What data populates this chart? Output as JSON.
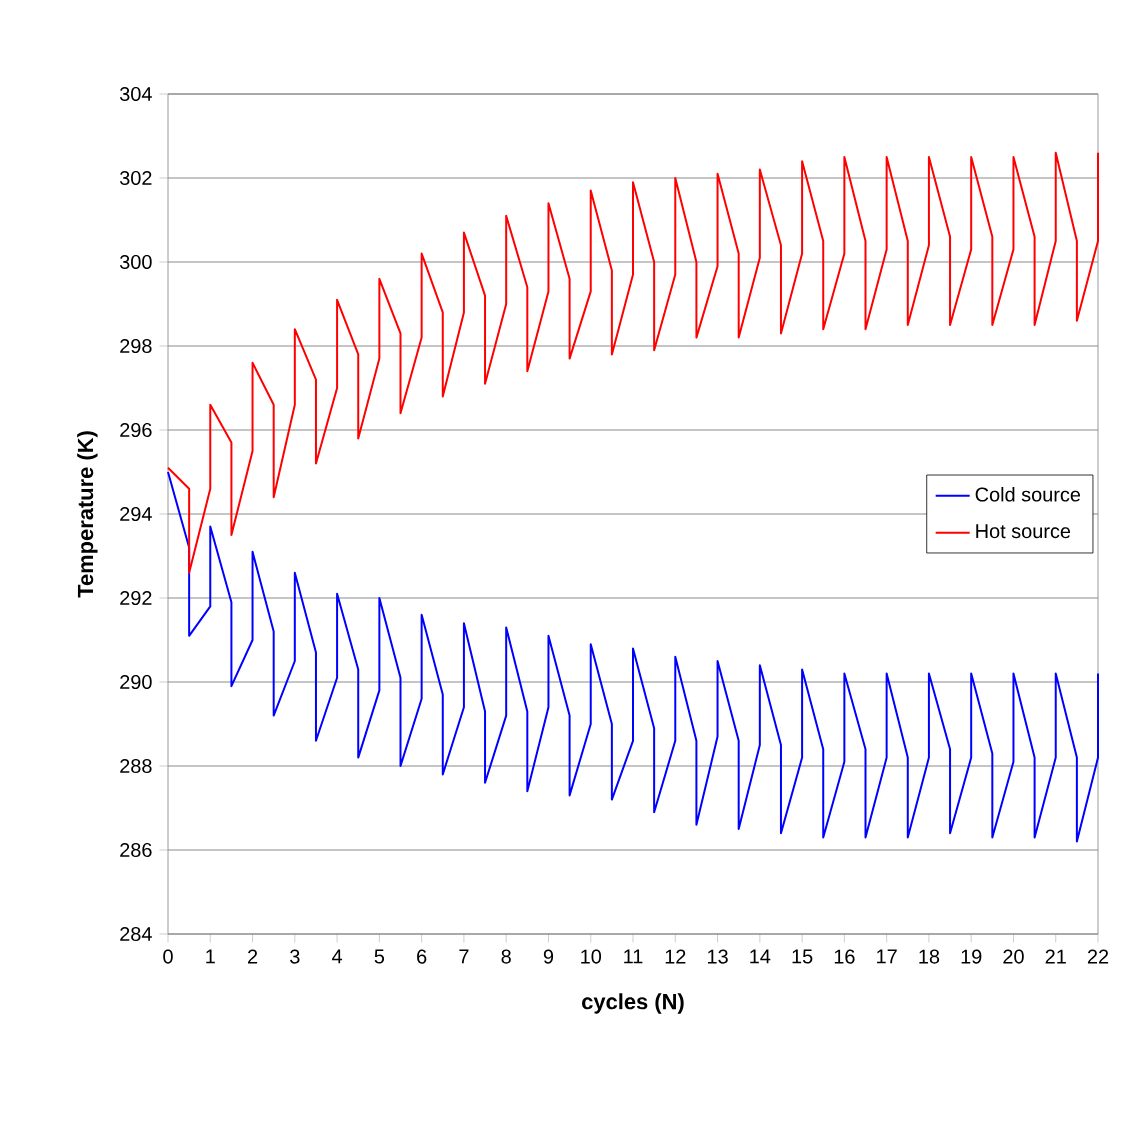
{
  "chart_data": {
    "type": "line",
    "xlabel": "cycles (N)",
    "ylabel": "Temperature (K)",
    "xlim": [
      0,
      22
    ],
    "xticks": [
      0,
      1,
      2,
      3,
      4,
      5,
      6,
      7,
      8,
      9,
      10,
      11,
      12,
      13,
      14,
      15,
      16,
      17,
      18,
      19,
      20,
      21,
      22
    ],
    "ylim": [
      284,
      304
    ],
    "yticks": [
      284,
      286,
      288,
      290,
      292,
      294,
      296,
      298,
      300,
      302,
      304
    ],
    "grid": "y",
    "legend": "right",
    "marker": "none",
    "line_style": "solid",
    "series": [
      {
        "name": "Cold source",
        "color": "#0000ff",
        "x": [
          0,
          0.5,
          0.5,
          1,
          1,
          1.5,
          1.5,
          2,
          2,
          2.5,
          2.5,
          3,
          3,
          3.5,
          3.5,
          4,
          4,
          4.5,
          4.5,
          5,
          5,
          5.5,
          5.5,
          6,
          6,
          6.5,
          6.5,
          7,
          7,
          7.5,
          7.5,
          8,
          8,
          8.5,
          8.5,
          9,
          9,
          9.5,
          9.5,
          10,
          10,
          10.5,
          10.5,
          11,
          11,
          11.5,
          11.5,
          12,
          12,
          12.5,
          12.5,
          13,
          13,
          13.5,
          13.5,
          14,
          14,
          14.5,
          14.5,
          15,
          15,
          15.5,
          15.5,
          16,
          16,
          16.5,
          16.5,
          17,
          17,
          17.5,
          17.5,
          18,
          18,
          18.5,
          18.5,
          19,
          19,
          19.5,
          19.5,
          20,
          20,
          20.5,
          20.5,
          21,
          21,
          21.5,
          21.5,
          22,
          22
        ],
        "values": [
          295.0,
          293.2,
          291.1,
          291.8,
          293.7,
          291.9,
          289.9,
          291.0,
          293.1,
          291.2,
          289.2,
          290.5,
          292.6,
          290.7,
          288.6,
          290.1,
          292.1,
          290.3,
          288.2,
          289.8,
          292.0,
          290.1,
          288.0,
          289.6,
          291.6,
          289.7,
          287.8,
          289.4,
          291.4,
          289.3,
          287.6,
          289.2,
          291.3,
          289.3,
          287.4,
          289.4,
          291.1,
          289.2,
          287.3,
          289.0,
          290.9,
          289.0,
          287.2,
          288.6,
          290.8,
          288.9,
          286.9,
          288.6,
          290.6,
          288.6,
          286.6,
          288.7,
          290.5,
          288.6,
          286.5,
          288.5,
          290.4,
          288.5,
          286.4,
          288.2,
          290.3,
          288.4,
          286.3,
          288.1,
          290.2,
          288.4,
          286.3,
          288.2,
          290.2,
          288.2,
          286.3,
          288.2,
          290.2,
          288.4,
          286.4,
          288.2,
          290.2,
          288.3,
          286.3,
          288.1,
          290.2,
          288.2,
          286.3,
          288.2,
          290.2,
          288.2,
          286.2,
          288.2,
          290.2
        ]
      },
      {
        "name": "Hot source",
        "color": "#ff0000",
        "x": [
          0,
          0.5,
          0.5,
          1,
          1,
          1.5,
          1.5,
          2,
          2,
          2.5,
          2.5,
          3,
          3,
          3.5,
          3.5,
          4,
          4,
          4.5,
          4.5,
          5,
          5,
          5.5,
          5.5,
          6,
          6,
          6.5,
          6.5,
          7,
          7,
          7.5,
          7.5,
          8,
          8,
          8.5,
          8.5,
          9,
          9,
          9.5,
          9.5,
          10,
          10,
          10.5,
          10.5,
          11,
          11,
          11.5,
          11.5,
          12,
          12,
          12.5,
          12.5,
          13,
          13,
          13.5,
          13.5,
          14,
          14,
          14.5,
          14.5,
          15,
          15,
          15.5,
          15.5,
          16,
          16,
          16.5,
          16.5,
          17,
          17,
          17.5,
          17.5,
          18,
          18,
          18.5,
          18.5,
          19,
          19,
          19.5,
          19.5,
          20,
          20,
          20.5,
          20.5,
          21,
          21,
          21.5,
          21.5,
          22,
          22
        ],
        "values": [
          295.1,
          294.6,
          292.6,
          294.6,
          296.6,
          295.7,
          293.5,
          295.5,
          297.6,
          296.6,
          294.4,
          296.6,
          298.4,
          297.2,
          295.2,
          297.0,
          299.1,
          297.8,
          295.8,
          297.7,
          299.6,
          298.3,
          296.4,
          298.2,
          300.2,
          298.8,
          296.8,
          298.8,
          300.7,
          299.2,
          297.1,
          299.0,
          301.1,
          299.4,
          297.4,
          299.3,
          301.4,
          299.6,
          297.7,
          299.3,
          301.7,
          299.8,
          297.8,
          299.7,
          301.9,
          300.0,
          297.9,
          299.7,
          302.0,
          300.0,
          298.2,
          299.9,
          302.1,
          300.2,
          298.2,
          300.1,
          302.2,
          300.4,
          298.3,
          300.2,
          302.4,
          300.5,
          298.4,
          300.2,
          302.5,
          300.5,
          298.4,
          300.3,
          302.5,
          300.5,
          298.5,
          300.4,
          302.5,
          300.6,
          298.5,
          300.3,
          302.5,
          300.6,
          298.5,
          300.3,
          302.5,
          300.6,
          298.5,
          300.5,
          302.6,
          300.5,
          298.6,
          300.5,
          302.6
        ]
      }
    ]
  }
}
